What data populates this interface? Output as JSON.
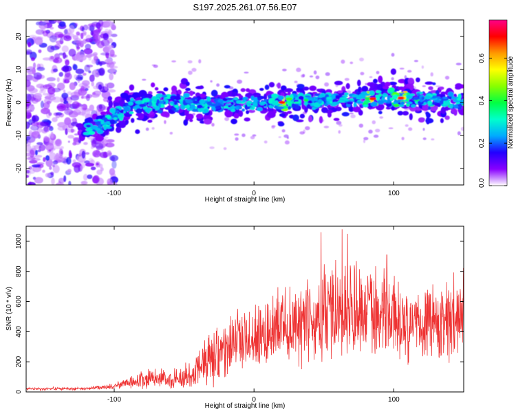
{
  "title": "S197.2025.261.07.56.E07",
  "chart_data": [
    {
      "type": "heatmap",
      "xlabel": "Height of straight line (km)",
      "ylabel": "Frequency (Hz)",
      "xlim": [
        -163,
        150
      ],
      "ylim": [
        -25,
        25
      ],
      "x_ticks": [
        -100,
        0,
        100
      ],
      "y_ticks": [
        -20,
        -10,
        0,
        10,
        20
      ],
      "signal_band": {
        "onset_km": -105,
        "centerline": [
          {
            "x": -125,
            "y": -8
          },
          {
            "x": -110,
            "y": -7
          },
          {
            "x": -100,
            "y": -4
          },
          {
            "x": -90,
            "y": -1
          },
          {
            "x": -60,
            "y": 0
          },
          {
            "x": -20,
            "y": -1
          },
          {
            "x": 20,
            "y": 0
          },
          {
            "x": 60,
            "y": 0.5
          },
          {
            "x": 100,
            "y": 1.5
          },
          {
            "x": 130,
            "y": 0.5
          },
          {
            "x": 150,
            "y": 0
          }
        ],
        "peak_amplitude_km": [
          20,
          85,
          105
        ]
      },
      "colorbar": {
        "label": "Normalized spectral amplitude",
        "range": [
          0.0,
          0.78
        ],
        "ticks": [
          "0.0",
          "0.2",
          "0.4",
          "0.6"
        ],
        "colors": [
          "#ffffff",
          "#8800ff",
          "#2200ff",
          "#00aaff",
          "#00ffcc",
          "#00ff44",
          "#88ff00",
          "#ffff00",
          "#ff9900",
          "#ff0000",
          "#ff0088"
        ]
      }
    },
    {
      "type": "line",
      "xlabel": "Height of straight line (km)",
      "ylabel": "SNR (10 * v/v)",
      "xlim": [
        -163,
        150
      ],
      "ylim": [
        0,
        1100
      ],
      "x_ticks": [
        -100,
        0,
        100
      ],
      "y_ticks": [
        0,
        200,
        400,
        600,
        800,
        1000
      ],
      "color": "#ee3333",
      "series": [
        {
          "name": "SNR",
          "trend": [
            {
              "x": -163,
              "y": 20
            },
            {
              "x": -120,
              "y": 22
            },
            {
              "x": -100,
              "y": 40
            },
            {
              "x": -80,
              "y": 80
            },
            {
              "x": -60,
              "y": 90
            },
            {
              "x": -45,
              "y": 110
            },
            {
              "x": -35,
              "y": 210
            },
            {
              "x": -25,
              "y": 260
            },
            {
              "x": -15,
              "y": 330
            },
            {
              "x": 0,
              "y": 380
            },
            {
              "x": 20,
              "y": 430
            },
            {
              "x": 40,
              "y": 480
            },
            {
              "x": 60,
              "y": 530
            },
            {
              "x": 80,
              "y": 520
            },
            {
              "x": 100,
              "y": 510
            },
            {
              "x": 125,
              "y": 480
            },
            {
              "x": 150,
              "y": 500
            }
          ],
          "peaks": [
            {
              "x": 48,
              "y": 1060
            },
            {
              "x": 63,
              "y": 1080
            },
            {
              "x": 67,
              "y": 1050
            },
            {
              "x": 95,
              "y": 910
            }
          ]
        }
      ]
    }
  ]
}
